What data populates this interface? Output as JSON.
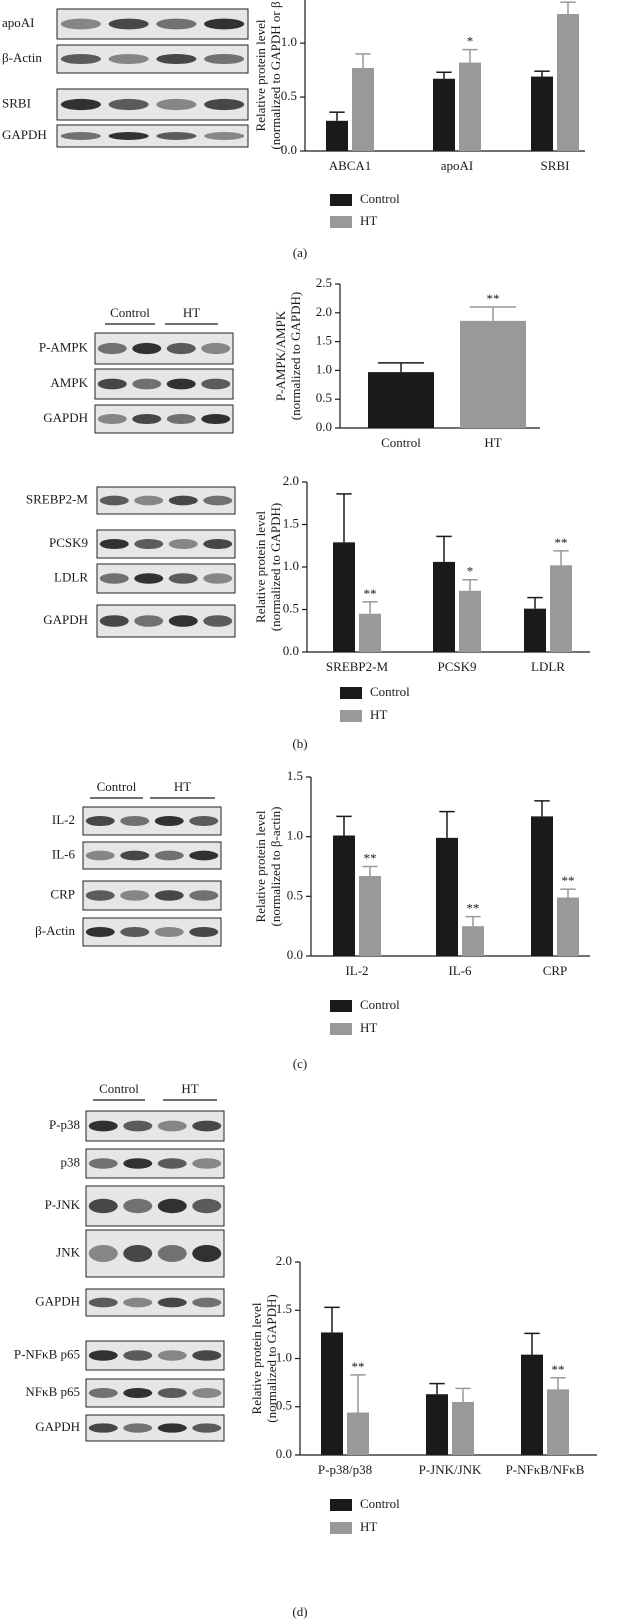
{
  "panel_labels": [
    "(a)",
    "(b)",
    "(c)",
    "(d)"
  ],
  "blots": [
    {
      "rows": [
        "apoAI",
        "β-Actin",
        "SRBI",
        "GAPDH"
      ]
    },
    {
      "groups": [
        "Control",
        "HT"
      ],
      "rows": [
        "P-AMPK",
        "AMPK",
        "GAPDH"
      ]
    },
    {
      "rows": [
        "SREBP2-M",
        "PCSK9",
        "LDLR",
        "GAPDH"
      ]
    },
    {
      "groups": [
        "Control",
        "HT"
      ],
      "rows": [
        "IL-2",
        "IL-6",
        "CRP",
        "β-Actin"
      ]
    },
    {
      "groups": [
        "Control",
        "HT"
      ],
      "rows": [
        "P-p38",
        "p38",
        "P-JNK",
        "JNK",
        "GAPDH",
        "P-NFκB p65",
        "NFκB p65",
        "GAPDH"
      ]
    }
  ],
  "chart_data": [
    {
      "type": "bar",
      "ylabel": [
        "Relative protein level",
        "(normalized to GAPDH or β"
      ],
      "categories": [
        "ABCA1",
        "apoAI",
        "SRBI"
      ],
      "series": [
        {
          "name": "Control",
          "color": "#1a1a1a",
          "values": [
            0.28,
            0.67,
            0.69
          ],
          "errors": [
            0.08,
            0.06,
            0.05
          ]
        },
        {
          "name": "HT",
          "color": "#999999",
          "values": [
            0.77,
            0.82,
            1.27
          ],
          "errors": [
            0.13,
            0.12,
            0.11
          ],
          "annotations": [
            null,
            "*",
            null
          ]
        }
      ],
      "ylim": [
        0,
        1.4
      ],
      "yticks": [
        {
          "value": 0,
          "label": "0.0"
        },
        {
          "value": 0.5,
          "label": "0.5"
        },
        {
          "value": 1,
          "label": "1.0"
        }
      ]
    },
    {
      "type": "bar",
      "ylabel": [
        "P-AMPK/AMPK",
        "(normalized to GAPDH)"
      ],
      "categories": [
        "Control",
        "HT"
      ],
      "values": [
        0.97,
        1.86
      ],
      "errors": [
        0.16,
        0.24
      ],
      "colors": [
        "#1a1a1a",
        "#999999"
      ],
      "annotations": [
        null,
        "**"
      ],
      "ylim": [
        0,
        2.5
      ],
      "yticks": [
        {
          "value": 0,
          "label": "0.0"
        },
        {
          "value": 0.5,
          "label": "0.5"
        },
        {
          "value": 1,
          "label": "1.0"
        },
        {
          "value": 1.5,
          "label": "1.5"
        },
        {
          "value": 2,
          "label": "2.0"
        },
        {
          "value": 2.5,
          "label": "2.5"
        }
      ]
    },
    {
      "type": "bar",
      "ylabel": [
        "Relative protein level",
        "(normalized to GAPDH)"
      ],
      "categories": [
        "SREBP2-M",
        "PCSK9",
        "LDLR"
      ],
      "series": [
        {
          "name": "Control",
          "color": "#1a1a1a",
          "values": [
            1.29,
            1.06,
            0.51
          ],
          "errors": [
            0.57,
            0.3,
            0.13
          ]
        },
        {
          "name": "HT",
          "color": "#999999",
          "values": [
            0.45,
            0.72,
            1.02
          ],
          "errors": [
            0.14,
            0.13,
            0.17
          ],
          "annotations": [
            "**",
            "*",
            "**"
          ]
        }
      ],
      "ylim": [
        0,
        2
      ],
      "yticks": [
        {
          "value": 0,
          "label": "0.0"
        },
        {
          "value": 0.5,
          "label": "0.5"
        },
        {
          "value": 1,
          "label": "1.0"
        },
        {
          "value": 1.5,
          "label": "1.5"
        },
        {
          "value": 2,
          "label": "2.0"
        }
      ]
    },
    {
      "type": "bar",
      "ylabel": [
        "Relative protein level",
        "(normalized to β-actin)"
      ],
      "categories": [
        "IL-2",
        "IL-6",
        "CRP"
      ],
      "series": [
        {
          "name": "Control",
          "color": "#1a1a1a",
          "values": [
            1.01,
            0.99,
            1.17
          ],
          "errors": [
            0.16,
            0.22,
            0.13
          ]
        },
        {
          "name": "HT",
          "color": "#999999",
          "values": [
            0.67,
            0.25,
            0.49
          ],
          "errors": [
            0.08,
            0.08,
            0.07
          ],
          "annotations": [
            "**",
            "**",
            "**"
          ]
        }
      ],
      "ylim": [
        0,
        1.5
      ],
      "yticks": [
        {
          "value": 0,
          "label": "0.0"
        },
        {
          "value": 0.5,
          "label": "0.5"
        },
        {
          "value": 1,
          "label": "1.0"
        },
        {
          "value": 1.5,
          "label": "1.5"
        }
      ]
    },
    {
      "type": "bar",
      "ylabel": [
        "Relative protein level",
        "(normalized to GAPDH)"
      ],
      "categories": [
        "P-p38/p38",
        "P-JNK/JNK",
        "P-NFκB/NFκB"
      ],
      "series": [
        {
          "name": "Control",
          "color": "#1a1a1a",
          "values": [
            1.27,
            0.63,
            1.04
          ],
          "errors": [
            0.26,
            0.11,
            0.22
          ]
        },
        {
          "name": "HT",
          "color": "#999999",
          "values": [
            0.44,
            0.55,
            0.68
          ],
          "errors": [
            0.39,
            0.14,
            0.12
          ],
          "annotations": [
            "**",
            null,
            "**"
          ]
        }
      ],
      "ylim": [
        0,
        2
      ],
      "yticks": [
        {
          "value": 0,
          "label": "0.0"
        },
        {
          "value": 0.5,
          "label": "0.5"
        },
        {
          "value": 1,
          "label": "1.0"
        },
        {
          "value": 1.5,
          "label": "1.5"
        },
        {
          "value": 2,
          "label": "2.0"
        }
      ]
    }
  ]
}
